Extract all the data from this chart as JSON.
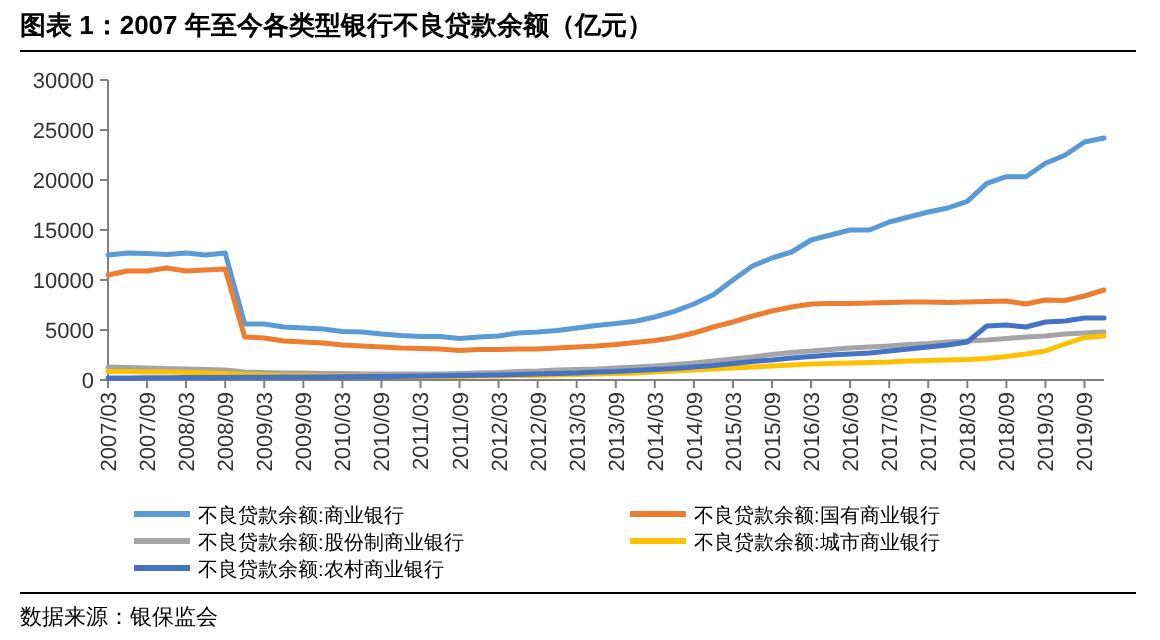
{
  "chart_data": {
    "type": "line",
    "title": "图表 1：2007 年至今各类型银行不良贷款余额（亿元）",
    "categories": [
      "2007/03",
      null,
      "2007/09",
      null,
      "2008/03",
      null,
      "2008/09",
      null,
      "2009/03",
      null,
      "2009/09",
      null,
      "2010/03",
      null,
      "2010/09",
      null,
      "2011/03",
      null,
      "2011/09",
      null,
      "2012/03",
      null,
      "2012/09",
      null,
      "2013/03",
      null,
      "2013/09",
      null,
      "2014/03",
      null,
      "2014/09",
      null,
      "2015/03",
      null,
      "2015/09",
      null,
      "2016/03",
      null,
      "2016/09",
      null,
      "2017/03",
      null,
      "2017/09",
      null,
      "2018/03",
      null,
      "2018/09",
      null,
      "2019/03",
      null,
      "2019/09",
      null
    ],
    "ylim": [
      0,
      30000
    ],
    "yticks": [
      0,
      5000,
      10000,
      15000,
      20000,
      25000,
      30000
    ],
    "legend": "bottom",
    "series": [
      {
        "name": "不良贷款余额:商业银行",
        "color": "#5b9bd5",
        "values": [
          12500,
          12700,
          12650,
          12550,
          12700,
          12500,
          12700,
          5600,
          5600,
          5300,
          5200,
          5100,
          4850,
          4800,
          4600,
          4450,
          4350,
          4350,
          4150,
          4300,
          4400,
          4700,
          4800,
          4950,
          5200,
          5450,
          5650,
          5870,
          6300,
          6870,
          7600,
          8530,
          10000,
          11400,
          12200,
          12800,
          14000,
          14500,
          15000,
          15000,
          15800,
          16300,
          16800,
          17200,
          17870,
          19670,
          20330,
          20330,
          21670,
          22470,
          23800,
          24200
        ]
      },
      {
        "name": "不良贷款余额:国有商业银行",
        "color": "#ed7d31",
        "values": [
          10500,
          10900,
          10900,
          11200,
          10900,
          11000,
          11100,
          4300,
          4200,
          3900,
          3800,
          3700,
          3500,
          3400,
          3300,
          3200,
          3150,
          3100,
          2950,
          3050,
          3050,
          3100,
          3100,
          3200,
          3300,
          3400,
          3550,
          3750,
          3950,
          4250,
          4700,
          5300,
          5800,
          6400,
          6900,
          7300,
          7600,
          7650,
          7650,
          7700,
          7750,
          7800,
          7800,
          7750,
          7800,
          7850,
          7900,
          7600,
          8000,
          7950,
          8400,
          9000
        ]
      },
      {
        "name": "不良贷款余额:股份制商业银行",
        "color": "#a5a5a5",
        "values": [
          1300,
          1250,
          1200,
          1150,
          1100,
          1050,
          1000,
          800,
          750,
          700,
          700,
          650,
          650,
          600,
          600,
          600,
          600,
          600,
          650,
          700,
          750,
          850,
          900,
          1000,
          1050,
          1100,
          1200,
          1300,
          1400,
          1550,
          1700,
          1900,
          2100,
          2300,
          2550,
          2750,
          2900,
          3050,
          3200,
          3300,
          3400,
          3550,
          3650,
          3800,
          3900,
          4000,
          4150,
          4300,
          4400,
          4600,
          4700,
          4800
        ]
      },
      {
        "name": "不良贷款余额:城市商业银行",
        "color": "#ffc000",
        "values": [
          850,
          850,
          800,
          800,
          750,
          700,
          650,
          550,
          500,
          450,
          450,
          400,
          400,
          400,
          350,
          350,
          350,
          350,
          350,
          400,
          400,
          450,
          450,
          500,
          550,
          600,
          650,
          700,
          800,
          900,
          1000,
          1100,
          1200,
          1300,
          1400,
          1500,
          1600,
          1650,
          1700,
          1750,
          1800,
          1900,
          1950,
          2000,
          2050,
          2150,
          2350,
          2600,
          2900,
          3600,
          4250,
          4400
        ]
      },
      {
        "name": "不良贷款余额:农村商业银行",
        "color": "#4472c4",
        "values": [
          200,
          210,
          220,
          230,
          240,
          250,
          260,
          270,
          280,
          290,
          300,
          310,
          320,
          340,
          360,
          380,
          400,
          420,
          450,
          480,
          500,
          550,
          600,
          650,
          700,
          800,
          850,
          950,
          1050,
          1150,
          1300,
          1450,
          1650,
          1850,
          2000,
          2200,
          2350,
          2500,
          2600,
          2700,
          2900,
          3100,
          3300,
          3500,
          3800,
          5400,
          5500,
          5300,
          5800,
          5900,
          6200,
          6200
        ]
      }
    ],
    "annotations": [
      "数据来源：银保监会"
    ]
  }
}
